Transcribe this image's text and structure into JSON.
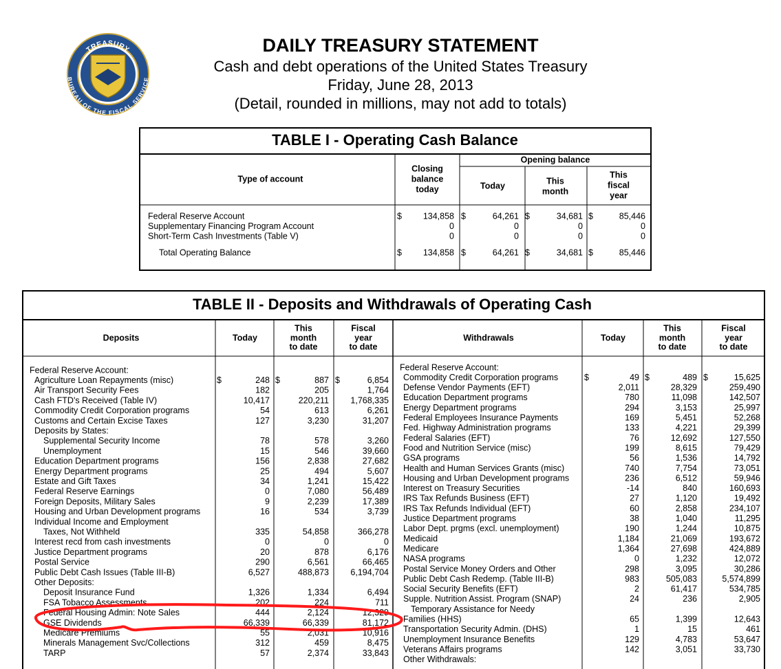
{
  "seal": {
    "top": "TREASURY",
    "bottom": "BUREAU OF THE FISCAL SERVICE"
  },
  "header": {
    "title": "DAILY TREASURY STATEMENT",
    "lines": [
      "Cash and debt operations of the United States Treasury",
      "Friday, June 28, 2013",
      "(Detail, rounded in millions, may not add to totals)"
    ]
  },
  "table1": {
    "title": "TABLE I - Operating Cash Balance",
    "currency": "$",
    "columns": {
      "account": "Type of account",
      "closing": [
        "Closing",
        "balance",
        "today"
      ],
      "opening": "Opening balance",
      "opening_sub": [
        [
          "Today"
        ],
        [
          "This",
          "month"
        ],
        [
          "This",
          "fiscal",
          "year"
        ]
      ]
    },
    "rows": [
      [
        "Federal Reserve Account",
        "134,858",
        "64,261",
        "34,681",
        "85,446"
      ],
      [
        "Supplementary Financing Program Account",
        "0",
        "0",
        "0",
        "0"
      ],
      [
        "Short-Term Cash Investments (Table V)",
        "0",
        "0",
        "0",
        "0"
      ]
    ],
    "total": [
      "Total Operating Balance",
      "134,858",
      "64,261",
      "34,681",
      "85,446"
    ]
  },
  "table2": {
    "title": "TABLE II - Deposits and Withdrawals of Operating Cash",
    "currency": "$",
    "deposits": {
      "columns": [
        [
          "Deposits"
        ],
        [
          "Today"
        ],
        [
          "This",
          "month",
          "to date"
        ],
        [
          "Fiscal",
          "year",
          "to date"
        ]
      ],
      "rows": [
        [
          "Federal Reserve Account:"
        ],
        [
          "Agriculture Loan Repayments (misc)",
          "248",
          "887",
          "6,854"
        ],
        [
          "Air Transport Security Fees",
          "182",
          "205",
          "1,764"
        ],
        [
          "Cash FTD's Received (Table IV)",
          "10,417",
          "220,211",
          "1,768,335"
        ],
        [
          "Commodity Credit Corporation programs",
          "54",
          "613",
          "6,261"
        ],
        [
          "Customs and Certain Excise Taxes",
          "127",
          "3,230",
          "31,207"
        ],
        [
          "Deposits by States:"
        ],
        [
          "Supplemental Security Income",
          "78",
          "578",
          "3,260"
        ],
        [
          "Unemployment",
          "15",
          "546",
          "39,660"
        ],
        [
          "Education Department programs",
          "156",
          "2,838",
          "27,682"
        ],
        [
          "Energy Department programs",
          "25",
          "494",
          "5,607"
        ],
        [
          "Estate and Gift Taxes",
          "34",
          "1,241",
          "15,422"
        ],
        [
          "Federal Reserve Earnings",
          "0",
          "7,080",
          "56,489"
        ],
        [
          "Foreign Deposits, Military Sales",
          "9",
          "2,239",
          "17,389"
        ],
        [
          "Housing and Urban Development programs",
          "16",
          "534",
          "3,739"
        ],
        [
          "Individual Income and Employment"
        ],
        [
          "Taxes, Not Withheld",
          "335",
          "54,858",
          "366,278"
        ],
        [
          "Interest recd from cash investments",
          "0",
          "0",
          "0"
        ],
        [
          "Justice Department programs",
          "20",
          "878",
          "6,176"
        ],
        [
          "Postal Service",
          "290",
          "6,561",
          "66,465"
        ],
        [
          "Public Debt Cash Issues (Table III-B)",
          "6,527",
          "488,873",
          "6,194,704"
        ],
        [
          "Other Deposits:"
        ],
        [
          "Deposit Insurance Fund",
          "1,326",
          "1,334",
          "6,494"
        ],
        [
          "FSA Tobacco Assessments",
          "202",
          "224",
          "711"
        ],
        [
          "Federal Housing Admin: Note Sales",
          "444",
          "2,124",
          "12,329"
        ],
        [
          "GSE Dividends",
          "66,339",
          "66,339",
          "81,172"
        ],
        [
          "Medicare Premiums",
          "55",
          "2,031",
          "10,916"
        ],
        [
          "Minerals Management Svc/Collections",
          "312",
          "459",
          "8,475"
        ],
        [
          "TARP",
          "57",
          "2,374",
          "33,843"
        ]
      ]
    },
    "withdrawals": {
      "columns": [
        [
          "Withdrawals"
        ],
        [
          "Today"
        ],
        [
          "This",
          "month",
          "to date"
        ],
        [
          "Fiscal",
          "year",
          "to date"
        ]
      ],
      "rows": [
        [
          "Federal Reserve Account:"
        ],
        [
          "Commodity Credit Corporation programs",
          "49",
          "489",
          "15,625"
        ],
        [
          "Defense Vendor Payments (EFT)",
          "2,011",
          "28,329",
          "259,490"
        ],
        [
          "Education Department programs",
          "780",
          "11,098",
          "142,507"
        ],
        [
          "Energy Department programs",
          "294",
          "3,153",
          "25,997"
        ],
        [
          "Federal Employees Insurance Payments",
          "169",
          "5,451",
          "52,268"
        ],
        [
          "Fed. Highway Administration programs",
          "133",
          "4,221",
          "29,399"
        ],
        [
          "Federal Salaries (EFT)",
          "76",
          "12,692",
          "127,550"
        ],
        [
          "Food and Nutrition Service (misc)",
          "199",
          "8,615",
          "79,429"
        ],
        [
          "GSA programs",
          "56",
          "1,536",
          "14,792"
        ],
        [
          "Health and Human Services Grants (misc)",
          "740",
          "7,754",
          "73,051"
        ],
        [
          "Housing and Urban Development programs",
          "236",
          "6,512",
          "59,946"
        ],
        [
          "Interest on Treasury Securities",
          "-14",
          "840",
          "160,693"
        ],
        [
          "IRS Tax Refunds Business (EFT)",
          "27",
          "1,120",
          "19,492"
        ],
        [
          "IRS Tax Refunds Individual (EFT)",
          "60",
          "2,858",
          "234,107"
        ],
        [
          "Justice Department programs",
          "38",
          "1,040",
          "11,295"
        ],
        [
          "Labor Dept. prgms (excl. unemployment)",
          "190",
          "1,244",
          "10,875"
        ],
        [
          "Medicaid",
          "1,184",
          "21,069",
          "193,672"
        ],
        [
          "Medicare",
          "1,364",
          "27,698",
          "424,889"
        ],
        [
          "NASA programs",
          "0",
          "1,232",
          "12,072"
        ],
        [
          "Postal Service Money Orders and Other",
          "298",
          "3,095",
          "30,286"
        ],
        [
          "Public Debt Cash Redemp. (Table III-B)",
          "983",
          "505,083",
          "5,574,899"
        ],
        [
          "Social Security Benefits (EFT)",
          "2",
          "61,417",
          "534,785"
        ],
        [
          "Supple. Nutrition Assist. Program (SNAP)",
          "24",
          "236",
          "2,905"
        ],
        [
          "Temporary Assistance for Needy"
        ],
        [
          "Families (HHS)",
          "65",
          "1,399",
          "12,643"
        ],
        [
          "Transportation Security Admin. (DHS)",
          "1",
          "15",
          "461"
        ],
        [
          "Unemployment Insurance Benefits",
          "129",
          "4,783",
          "53,647"
        ],
        [
          "Veterans Affairs programs",
          "142",
          "3,051",
          "33,730"
        ],
        [
          "Other Withdrawals:"
        ]
      ]
    }
  }
}
